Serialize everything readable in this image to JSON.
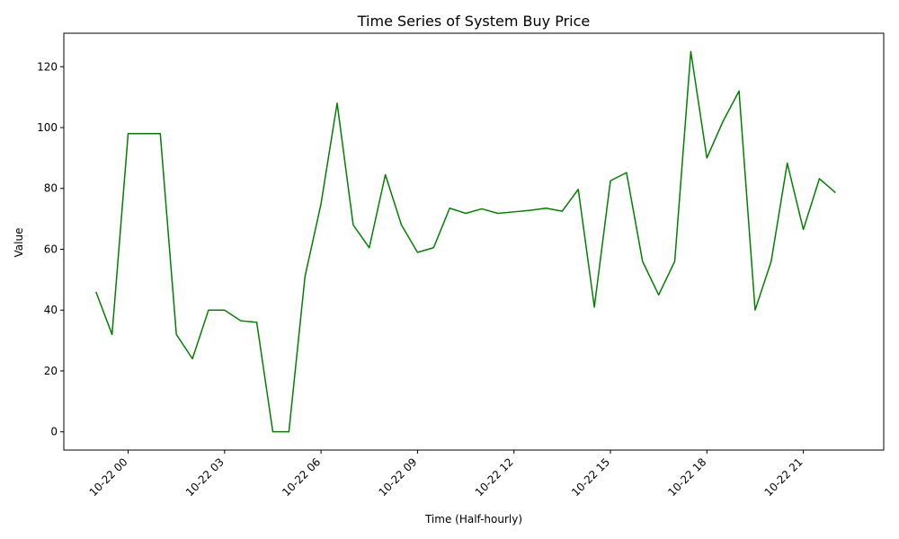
{
  "chart_data": {
    "type": "line",
    "title": "Time Series of System Buy Price",
    "xlabel": "Time (Half-hourly)",
    "ylabel": "Value",
    "x_start": "10-22 23:00 (previous day)",
    "x_step_hours": 0.5,
    "xlim_hours": [
      -2.0,
      23.5
    ],
    "ylim": [
      -6,
      131
    ],
    "x_tick_hours": [
      0,
      3,
      6,
      9,
      12,
      15,
      18,
      21
    ],
    "x_tick_labels": [
      "10-22 00",
      "10-22 03",
      "10-22 06",
      "10-22 09",
      "10-22 12",
      "10-22 15",
      "10-22 18",
      "10-22 21"
    ],
    "y_ticks": [
      0,
      20,
      40,
      60,
      80,
      100,
      120
    ],
    "grid": false,
    "series": [
      {
        "name": "System Buy Price",
        "color": "#008000",
        "x_hours": [
          -1.0,
          -0.5,
          0.0,
          0.5,
          1.0,
          1.5,
          2.0,
          2.5,
          3.0,
          3.5,
          4.0,
          4.5,
          5.0,
          5.5,
          6.0,
          6.5,
          7.0,
          7.5,
          8.0,
          8.5,
          9.0,
          9.5,
          10.0,
          10.5,
          11.0,
          11.5,
          12.0,
          12.5,
          13.0,
          13.5,
          14.0,
          14.5,
          15.0,
          15.5,
          16.0,
          16.5,
          17.0,
          17.5,
          18.0,
          18.5,
          19.0,
          19.5,
          20.0,
          20.5,
          21.0,
          21.5,
          22.0
        ],
        "values": [
          46,
          32,
          98,
          98,
          98,
          32,
          24,
          40,
          40,
          36.5,
          36,
          0,
          0,
          51,
          75,
          108,
          68,
          60.5,
          84.5,
          68,
          59,
          60.5,
          73.5,
          71.8,
          73.3,
          71.8,
          72.3,
          72.8,
          73.5,
          72.5,
          79.7,
          41,
          82.5,
          85.2,
          56,
          45,
          56,
          125,
          90,
          102,
          112,
          40,
          56,
          88.3,
          66.5,
          83.2,
          78.6
        ]
      }
    ]
  }
}
